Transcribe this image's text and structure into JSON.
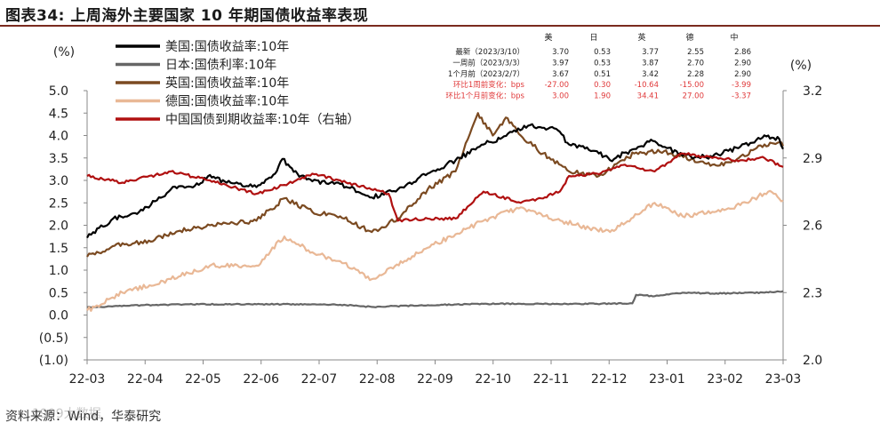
{
  "title": "图表34:  上周海外主要国家 10 年期国债收益率表现",
  "source": "资料来源：Wind，华泰研究",
  "watermark": "1999大数据",
  "colors": {
    "us": "#000000",
    "jp": "#666666",
    "uk": "#7b4a21",
    "de": "#e9b896",
    "cn": "#b01010",
    "title_rule": "#7a2a1e",
    "table_red": "#e0393a"
  },
  "chart_data": {
    "type": "line",
    "left_unit": "(%)",
    "right_unit": "(%)",
    "x_tick_labels": [
      "22-03",
      "22-04",
      "22-05",
      "22-06",
      "22-07",
      "22-08",
      "22-09",
      "22-10",
      "22-11",
      "22-12",
      "23-01",
      "23-02",
      "23-03"
    ],
    "x_range": [
      "2022-03-01",
      "2023-03-10"
    ],
    "ylim_left": [
      -1.0,
      5.0
    ],
    "y_ticks_left": [
      "5.0",
      "4.5",
      "4.0",
      "3.5",
      "3.0",
      "2.5",
      "2.0",
      "1.5",
      "1.0",
      "0.5",
      "0.0",
      "(0.5)",
      "(1.0)"
    ],
    "ylim_right": [
      2.0,
      3.2
    ],
    "y_ticks_right": [
      "3.2",
      "2.9",
      "2.6",
      "2.3",
      "2.0"
    ],
    "legend": [
      {
        "key": "us",
        "label": "美国:国债收益率:10年"
      },
      {
        "key": "jp",
        "label": "日本:国债利率:10年"
      },
      {
        "key": "uk",
        "label": "英国:国债收益率:10年"
      },
      {
        "key": "de",
        "label": "德国:国债收益率:10年"
      },
      {
        "key": "cn",
        "label": "中国国债到期收益率:10年（右轴）"
      }
    ],
    "series": [
      {
        "key": "us",
        "name": "美国:国债收益率:10年",
        "axis": "left",
        "points": [
          [
            "2022-03-01",
            1.72
          ],
          [
            "2022-03-15",
            2.15
          ],
          [
            "2022-03-31",
            2.33
          ],
          [
            "2022-04-15",
            2.8
          ],
          [
            "2022-04-30",
            2.9
          ],
          [
            "2022-05-06",
            3.12
          ],
          [
            "2022-05-15",
            2.95
          ],
          [
            "2022-05-31",
            2.85
          ],
          [
            "2022-06-10",
            3.15
          ],
          [
            "2022-06-14",
            3.48
          ],
          [
            "2022-06-22",
            3.15
          ],
          [
            "2022-06-30",
            2.98
          ],
          [
            "2022-07-15",
            2.92
          ],
          [
            "2022-08-01",
            2.62
          ],
          [
            "2022-08-15",
            2.8
          ],
          [
            "2022-08-31",
            3.15
          ],
          [
            "2022-09-15",
            3.45
          ],
          [
            "2022-09-30",
            3.8
          ],
          [
            "2022-10-10",
            3.95
          ],
          [
            "2022-10-24",
            4.22
          ],
          [
            "2022-11-08",
            4.15
          ],
          [
            "2022-11-15",
            3.8
          ],
          [
            "2022-11-30",
            3.65
          ],
          [
            "2022-12-07",
            3.45
          ],
          [
            "2022-12-20",
            3.7
          ],
          [
            "2022-12-30",
            3.88
          ],
          [
            "2023-01-15",
            3.55
          ],
          [
            "2023-01-31",
            3.52
          ],
          [
            "2023-02-15",
            3.75
          ],
          [
            "2023-03-01",
            3.98
          ],
          [
            "2023-03-08",
            3.92
          ],
          [
            "2023-03-10",
            3.7
          ]
        ]
      },
      {
        "key": "jp",
        "name": "日本:国债利率:10年",
        "axis": "left",
        "points": [
          [
            "2022-03-01",
            0.17
          ],
          [
            "2022-03-31",
            0.22
          ],
          [
            "2022-04-30",
            0.24
          ],
          [
            "2022-05-31",
            0.24
          ],
          [
            "2022-06-30",
            0.24
          ],
          [
            "2022-07-15",
            0.23
          ],
          [
            "2022-08-01",
            0.18
          ],
          [
            "2022-08-31",
            0.22
          ],
          [
            "2022-09-30",
            0.25
          ],
          [
            "2022-10-31",
            0.25
          ],
          [
            "2022-11-30",
            0.25
          ],
          [
            "2022-12-19",
            0.26
          ],
          [
            "2022-12-21",
            0.45
          ],
          [
            "2022-12-31",
            0.42
          ],
          [
            "2023-01-15",
            0.5
          ],
          [
            "2023-01-31",
            0.48
          ],
          [
            "2023-02-28",
            0.5
          ],
          [
            "2023-03-10",
            0.53
          ]
        ]
      },
      {
        "key": "uk",
        "name": "英国:国债收益率:10年",
        "axis": "left",
        "points": [
          [
            "2022-03-01",
            1.3
          ],
          [
            "2022-03-20",
            1.6
          ],
          [
            "2022-03-31",
            1.6
          ],
          [
            "2022-04-20",
            1.88
          ],
          [
            "2022-05-06",
            2.0
          ],
          [
            "2022-05-31",
            2.1
          ],
          [
            "2022-06-15",
            2.6
          ],
          [
            "2022-06-30",
            2.3
          ],
          [
            "2022-07-15",
            2.2
          ],
          [
            "2022-08-01",
            1.85
          ],
          [
            "2022-08-15",
            2.15
          ],
          [
            "2022-08-31",
            2.8
          ],
          [
            "2022-09-15",
            3.2
          ],
          [
            "2022-09-27",
            4.5
          ],
          [
            "2022-10-05",
            4.0
          ],
          [
            "2022-10-12",
            4.4
          ],
          [
            "2022-10-20",
            4.0
          ],
          [
            "2022-11-01",
            3.6
          ],
          [
            "2022-11-15",
            3.2
          ],
          [
            "2022-12-01",
            3.1
          ],
          [
            "2022-12-20",
            3.6
          ],
          [
            "2023-01-05",
            3.65
          ],
          [
            "2023-01-31",
            3.35
          ],
          [
            "2023-02-10",
            3.4
          ],
          [
            "2023-02-28",
            3.8
          ],
          [
            "2023-03-08",
            3.85
          ],
          [
            "2023-03-10",
            3.77
          ]
        ]
      },
      {
        "key": "de",
        "name": "德国:国债收益率:10年",
        "axis": "left",
        "points": [
          [
            "2022-03-01",
            0.1
          ],
          [
            "2022-03-20",
            0.5
          ],
          [
            "2022-04-15",
            0.8
          ],
          [
            "2022-05-06",
            1.1
          ],
          [
            "2022-05-31",
            1.1
          ],
          [
            "2022-06-15",
            1.75
          ],
          [
            "2022-06-30",
            1.4
          ],
          [
            "2022-07-15",
            1.2
          ],
          [
            "2022-08-01",
            0.8
          ],
          [
            "2022-08-31",
            1.5
          ],
          [
            "2022-09-15",
            1.8
          ],
          [
            "2022-09-30",
            2.1
          ],
          [
            "2022-10-20",
            2.4
          ],
          [
            "2022-11-01",
            2.2
          ],
          [
            "2022-11-30",
            1.9
          ],
          [
            "2022-12-07",
            1.85
          ],
          [
            "2022-12-31",
            2.5
          ],
          [
            "2023-01-15",
            2.2
          ],
          [
            "2023-01-31",
            2.3
          ],
          [
            "2023-02-15",
            2.45
          ],
          [
            "2023-03-02",
            2.75
          ],
          [
            "2023-03-10",
            2.55
          ]
        ]
      },
      {
        "key": "cn",
        "name": "中国国债到期收益率:10年（右轴）",
        "axis": "right",
        "points": [
          [
            "2022-03-01",
            2.82
          ],
          [
            "2022-03-20",
            2.79
          ],
          [
            "2022-04-15",
            2.84
          ],
          [
            "2022-05-06",
            2.8
          ],
          [
            "2022-05-31",
            2.74
          ],
          [
            "2022-06-15",
            2.78
          ],
          [
            "2022-06-30",
            2.83
          ],
          [
            "2022-07-15",
            2.8
          ],
          [
            "2022-08-10",
            2.74
          ],
          [
            "2022-08-15",
            2.62
          ],
          [
            "2022-08-31",
            2.63
          ],
          [
            "2022-09-15",
            2.63
          ],
          [
            "2022-09-30",
            2.75
          ],
          [
            "2022-10-20",
            2.7
          ],
          [
            "2022-10-31",
            2.72
          ],
          [
            "2022-11-10",
            2.75
          ],
          [
            "2022-11-15",
            2.82
          ],
          [
            "2022-11-30",
            2.83
          ],
          [
            "2022-12-15",
            2.87
          ],
          [
            "2022-12-31",
            2.84
          ],
          [
            "2023-01-15",
            2.92
          ],
          [
            "2023-01-31",
            2.9
          ],
          [
            "2023-02-15",
            2.89
          ],
          [
            "2023-02-28",
            2.9
          ],
          [
            "2023-03-10",
            2.86
          ]
        ]
      }
    ],
    "table": {
      "headers": [
        "美",
        "日",
        "英",
        "德",
        "中"
      ],
      "rows": [
        {
          "label": "最新（2023/3/10）",
          "values": [
            "3.70",
            "0.53",
            "3.77",
            "2.55",
            "2.86"
          ],
          "highlight": false
        },
        {
          "label": "一周前（2023/3/3）",
          "values": [
            "3.97",
            "0.53",
            "3.87",
            "2.70",
            "2.90"
          ],
          "highlight": false
        },
        {
          "label": "1个月前（2023/2/7）",
          "values": [
            "3.67",
            "0.51",
            "3.42",
            "2.28",
            "2.90"
          ],
          "highlight": false
        },
        {
          "label": "环比1周前变化：bps",
          "values": [
            "-27.00",
            "0.30",
            "-10.64",
            "-15.00",
            "-3.99"
          ],
          "highlight": true
        },
        {
          "label": "环比1个月前变化：bps",
          "values": [
            "3.00",
            "1.90",
            "34.41",
            "27.00",
            "-3.37"
          ],
          "highlight": true
        }
      ]
    }
  }
}
